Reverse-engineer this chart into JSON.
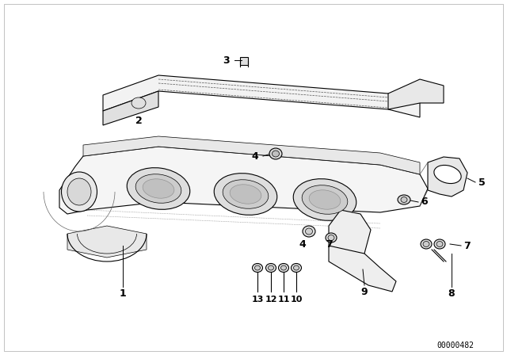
{
  "bg_color": "#ffffff",
  "line_color": "#000000",
  "fig_width": 6.4,
  "fig_height": 4.48,
  "dpi": 100,
  "watermark": "00000482",
  "border_color": "#aaaaaa"
}
